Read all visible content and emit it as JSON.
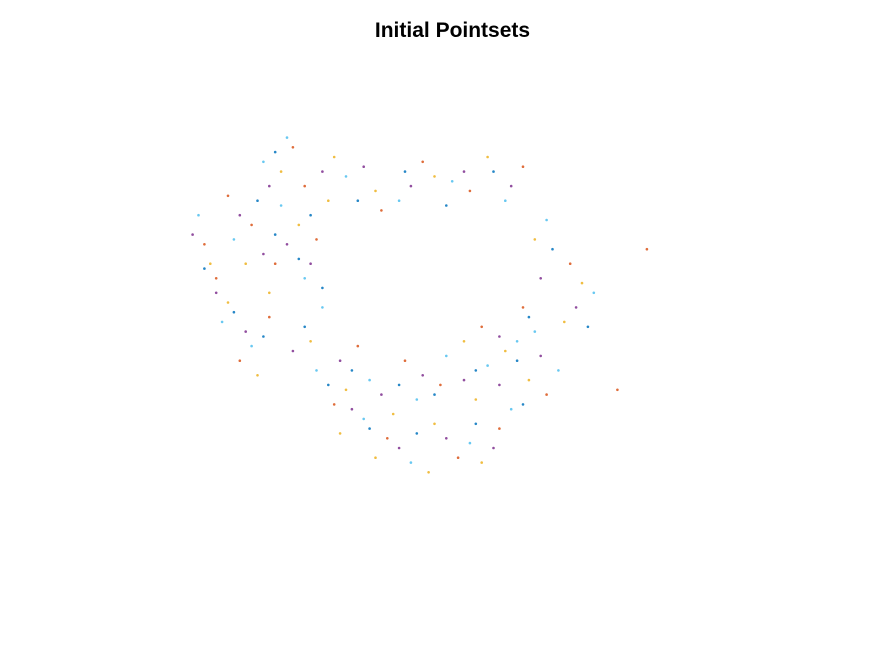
{
  "chart_data": {
    "type": "scatter",
    "title": "Initial Pointsets",
    "axes_visible": false,
    "grid": false,
    "xlim": [
      0,
      1
    ],
    "ylim": [
      0,
      1
    ],
    "series": [
      {
        "color": "#d95319",
        "points": [
          [
            0.2,
            0.72
          ],
          [
            0.24,
            0.66
          ],
          [
            0.31,
            0.82
          ],
          [
            0.28,
            0.58
          ],
          [
            0.18,
            0.55
          ],
          [
            0.35,
            0.63
          ],
          [
            0.42,
            0.41
          ],
          [
            0.5,
            0.38
          ],
          [
            0.56,
            0.33
          ],
          [
            0.63,
            0.45
          ],
          [
            0.7,
            0.49
          ],
          [
            0.74,
            0.31
          ],
          [
            0.66,
            0.24
          ],
          [
            0.59,
            0.18
          ],
          [
            0.47,
            0.22
          ],
          [
            0.38,
            0.29
          ],
          [
            0.27,
            0.47
          ],
          [
            0.22,
            0.38
          ],
          [
            0.16,
            0.62
          ],
          [
            0.33,
            0.74
          ],
          [
            0.46,
            0.69
          ],
          [
            0.53,
            0.79
          ],
          [
            0.61,
            0.73
          ],
          [
            0.7,
            0.78
          ],
          [
            0.78,
            0.58
          ],
          [
            0.91,
            0.61
          ],
          [
            0.86,
            0.32
          ]
        ]
      },
      {
        "color": "#4dbeee",
        "points": [
          [
            0.21,
            0.63
          ],
          [
            0.26,
            0.79
          ],
          [
            0.29,
            0.7
          ],
          [
            0.33,
            0.55
          ],
          [
            0.19,
            0.46
          ],
          [
            0.24,
            0.41
          ],
          [
            0.36,
            0.49
          ],
          [
            0.44,
            0.34
          ],
          [
            0.52,
            0.3
          ],
          [
            0.57,
            0.39
          ],
          [
            0.64,
            0.37
          ],
          [
            0.72,
            0.44
          ],
          [
            0.68,
            0.28
          ],
          [
            0.61,
            0.21
          ],
          [
            0.51,
            0.17
          ],
          [
            0.43,
            0.26
          ],
          [
            0.35,
            0.36
          ],
          [
            0.15,
            0.68
          ],
          [
            0.3,
            0.84
          ],
          [
            0.4,
            0.76
          ],
          [
            0.49,
            0.71
          ],
          [
            0.58,
            0.75
          ],
          [
            0.67,
            0.71
          ],
          [
            0.74,
            0.67
          ],
          [
            0.82,
            0.52
          ],
          [
            0.69,
            0.42
          ],
          [
            0.76,
            0.36
          ]
        ]
      },
      {
        "color": "#edb120",
        "points": [
          [
            0.23,
            0.58
          ],
          [
            0.27,
            0.52
          ],
          [
            0.32,
            0.66
          ],
          [
            0.37,
            0.71
          ],
          [
            0.2,
            0.5
          ],
          [
            0.25,
            0.35
          ],
          [
            0.34,
            0.42
          ],
          [
            0.4,
            0.32
          ],
          [
            0.48,
            0.27
          ],
          [
            0.55,
            0.25
          ],
          [
            0.62,
            0.3
          ],
          [
            0.67,
            0.4
          ],
          [
            0.71,
            0.34
          ],
          [
            0.63,
            0.17
          ],
          [
            0.54,
            0.15
          ],
          [
            0.45,
            0.18
          ],
          [
            0.39,
            0.23
          ],
          [
            0.17,
            0.58
          ],
          [
            0.29,
            0.77
          ],
          [
            0.38,
            0.8
          ],
          [
            0.45,
            0.73
          ],
          [
            0.55,
            0.76
          ],
          [
            0.64,
            0.8
          ],
          [
            0.72,
            0.63
          ],
          [
            0.8,
            0.54
          ],
          [
            0.77,
            0.46
          ],
          [
            0.6,
            0.42
          ]
        ]
      },
      {
        "color": "#7e2f8e",
        "points": [
          [
            0.22,
            0.68
          ],
          [
            0.26,
            0.6
          ],
          [
            0.3,
            0.62
          ],
          [
            0.34,
            0.58
          ],
          [
            0.18,
            0.52
          ],
          [
            0.23,
            0.44
          ],
          [
            0.31,
            0.4
          ],
          [
            0.39,
            0.38
          ],
          [
            0.46,
            0.31
          ],
          [
            0.53,
            0.35
          ],
          [
            0.6,
            0.34
          ],
          [
            0.66,
            0.43
          ],
          [
            0.73,
            0.39
          ],
          [
            0.65,
            0.2
          ],
          [
            0.57,
            0.22
          ],
          [
            0.49,
            0.2
          ],
          [
            0.41,
            0.28
          ],
          [
            0.14,
            0.64
          ],
          [
            0.27,
            0.74
          ],
          [
            0.36,
            0.77
          ],
          [
            0.43,
            0.78
          ],
          [
            0.51,
            0.74
          ],
          [
            0.6,
            0.77
          ],
          [
            0.68,
            0.74
          ],
          [
            0.73,
            0.55
          ],
          [
            0.79,
            0.49
          ],
          [
            0.66,
            0.33
          ]
        ]
      },
      {
        "color": "#0072bd",
        "points": [
          [
            0.25,
            0.71
          ],
          [
            0.28,
            0.64
          ],
          [
            0.32,
            0.59
          ],
          [
            0.36,
            0.53
          ],
          [
            0.21,
            0.48
          ],
          [
            0.26,
            0.43
          ],
          [
            0.33,
            0.45
          ],
          [
            0.41,
            0.36
          ],
          [
            0.49,
            0.33
          ],
          [
            0.55,
            0.31
          ],
          [
            0.62,
            0.36
          ],
          [
            0.69,
            0.38
          ],
          [
            0.7,
            0.29
          ],
          [
            0.62,
            0.25
          ],
          [
            0.52,
            0.23
          ],
          [
            0.44,
            0.24
          ],
          [
            0.37,
            0.33
          ],
          [
            0.16,
            0.57
          ],
          [
            0.28,
            0.81
          ],
          [
            0.34,
            0.68
          ],
          [
            0.42,
            0.71
          ],
          [
            0.5,
            0.77
          ],
          [
            0.57,
            0.7
          ],
          [
            0.65,
            0.77
          ],
          [
            0.75,
            0.61
          ],
          [
            0.81,
            0.45
          ],
          [
            0.71,
            0.47
          ]
        ]
      }
    ]
  }
}
